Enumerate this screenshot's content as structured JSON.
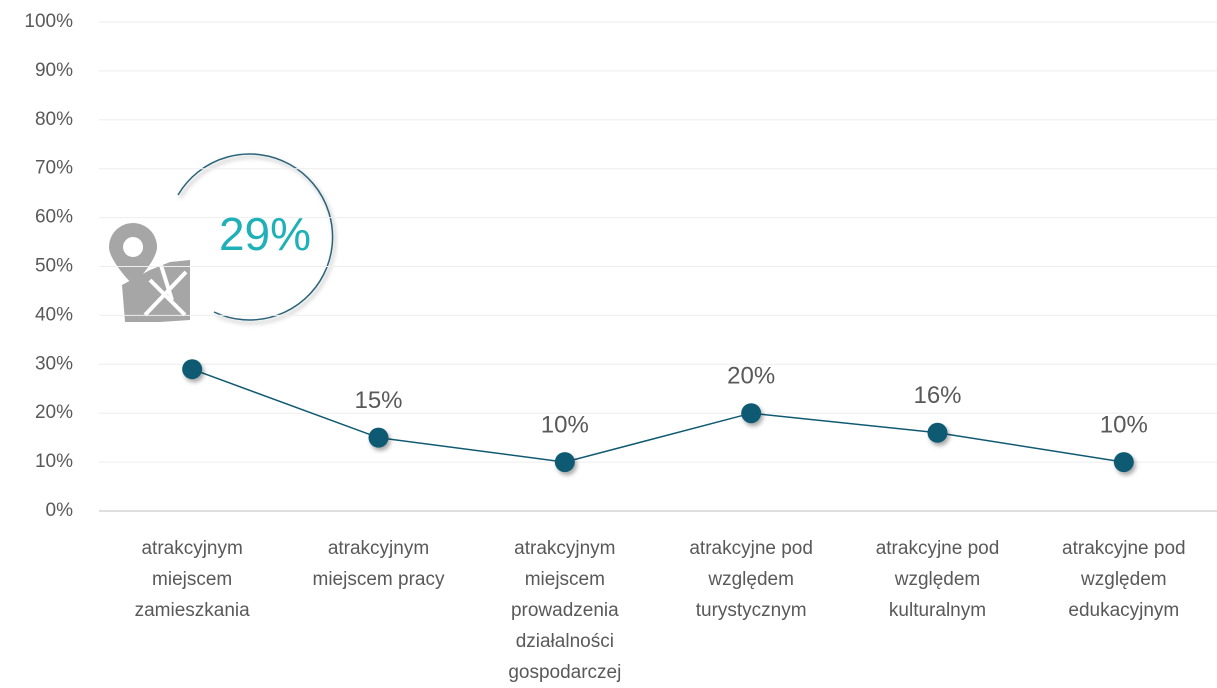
{
  "chart_data": {
    "type": "line",
    "categories": [
      "atrakcyjnym miejscem zamieszkania",
      "atrakcyjnym miejscem pracy",
      "atrakcyjnym miejscem prowadzenia działalności gospodarczej",
      "atrakcyjne pod względem turystycznym",
      "atrakcyjne pod względem kulturalnym",
      "atrakcyjne pod względem edukacyjnym"
    ],
    "values": [
      29,
      15,
      10,
      20,
      16,
      10
    ],
    "value_labels": [
      "29%",
      "15%",
      "10%",
      "20%",
      "16%",
      "10%"
    ],
    "color": "#0f5a72",
    "ylim": [
      0,
      100
    ],
    "yticks": [
      {
        "value": 0,
        "label": "0%"
      },
      {
        "value": 10,
        "label": "10%"
      },
      {
        "value": 20,
        "label": "20%"
      },
      {
        "value": 30,
        "label": "30%"
      },
      {
        "value": 40,
        "label": "40%"
      },
      {
        "value": 50,
        "label": "50%"
      },
      {
        "value": 60,
        "label": "60%"
      },
      {
        "value": 70,
        "label": "70%"
      },
      {
        "value": 80,
        "label": "80%"
      },
      {
        "value": 90,
        "label": "90%"
      },
      {
        "value": 100,
        "label": "100%"
      }
    ],
    "grid": true
  }
}
